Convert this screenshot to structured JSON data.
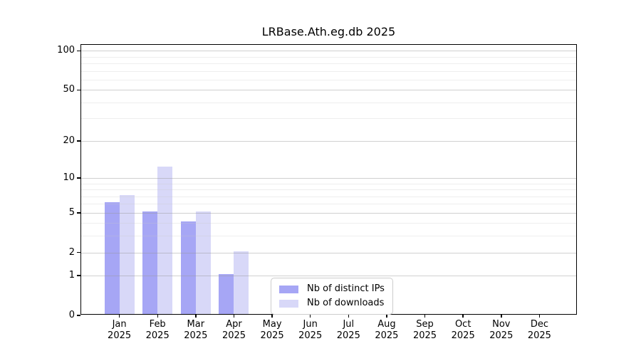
{
  "chart_data": {
    "type": "bar",
    "title": "LRBase.Ath.eg.db 2025",
    "year_label": "2025",
    "categories": [
      "Jan",
      "Feb",
      "Mar",
      "Apr",
      "May",
      "Jun",
      "Jul",
      "Aug",
      "Sep",
      "Oct",
      "Nov",
      "Dec"
    ],
    "series": [
      {
        "name": "Nb of distinct IPs",
        "color": "#a6a6f5",
        "values": [
          6,
          5,
          4,
          1,
          0,
          0,
          0,
          0,
          0,
          0,
          0,
          0
        ]
      },
      {
        "name": "Nb of downloads",
        "color": "#d8d8f8",
        "values": [
          7,
          12,
          5,
          2,
          0,
          0,
          0,
          0,
          0,
          0,
          0,
          0
        ]
      }
    ],
    "yscale": "log1p",
    "ylim": [
      0,
      111
    ],
    "y_tick_values": [
      0,
      1,
      2,
      5,
      10,
      20,
      50,
      100
    ],
    "y_minor_grid_values": [
      1,
      2,
      3,
      4,
      5,
      6,
      7,
      8,
      9,
      10,
      20,
      30,
      40,
      50,
      60,
      70,
      80,
      90,
      100
    ],
    "grid": true,
    "legend_position": "lower center-right",
    "xlabel": "",
    "ylabel": ""
  }
}
